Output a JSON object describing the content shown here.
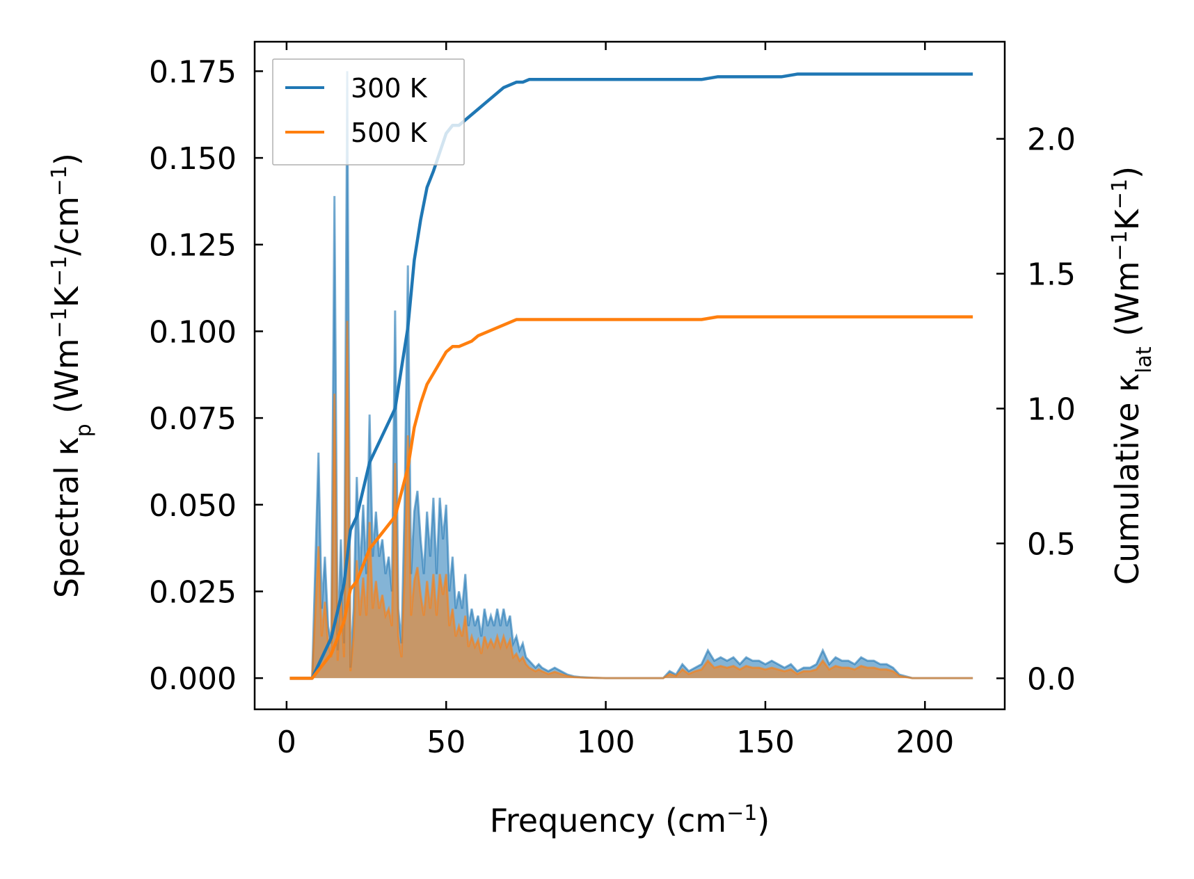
{
  "chart_data": {
    "type": "line",
    "title": "",
    "xlabel": {
      "text": "Frequency (cm",
      "sup": "−1",
      "tail": ")"
    },
    "ylabel_left": {
      "pre": "Spectral κ",
      "sub": "p",
      "mid": " (Wm",
      "sup1": "−1",
      "k": "K",
      "sup2": "−1",
      "per": "/cm",
      "sup3": "−1",
      "tail": ")"
    },
    "ylabel_right": {
      "pre": "Cumulative κ",
      "sub": "lat",
      "mid": " (Wm",
      "sup1": "−1",
      "k": "K",
      "sup2": "−1",
      "tail": ")"
    },
    "xlim": [
      -10,
      225
    ],
    "ylim_left": [
      -0.009,
      0.1835
    ],
    "ylim_right": [
      -0.115,
      2.36
    ],
    "xticks": [
      0,
      50,
      100,
      150,
      200
    ],
    "xtick_labels": [
      "0",
      "50",
      "100",
      "150",
      "200"
    ],
    "yticks_left": [
      0.0,
      0.025,
      0.05,
      0.075,
      0.1,
      0.125,
      0.15,
      0.175
    ],
    "ytick_labels_left": [
      "0.000",
      "0.025",
      "0.050",
      "0.075",
      "0.100",
      "0.125",
      "0.150",
      "0.175"
    ],
    "yticks_right": [
      0.0,
      0.5,
      1.0,
      1.5,
      2.0
    ],
    "ytick_labels_right": [
      "0.0",
      "0.5",
      "1.0",
      "1.5",
      "2.0"
    ],
    "legend": {
      "position": "upper-left",
      "entries": [
        "300 K",
        "500 K"
      ]
    },
    "colors": {
      "s300": "#1f77b4",
      "s500": "#ff7f0e",
      "fill300": "#1f77b4",
      "fill500": "#ff7f0e"
    },
    "spectral_300": {
      "x": [
        1,
        8,
        10,
        11,
        12,
        13,
        14,
        15,
        16,
        17,
        18,
        19,
        20,
        21,
        22,
        23,
        24,
        25,
        26,
        27,
        28,
        29,
        30,
        31,
        32,
        33,
        34,
        35,
        36,
        37,
        38,
        39,
        40,
        41,
        42,
        43,
        44,
        45,
        46,
        47,
        48,
        49,
        50,
        51,
        52,
        53,
        54,
        55,
        56,
        57,
        58,
        59,
        60,
        61,
        62,
        63,
        64,
        65,
        66,
        67,
        68,
        69,
        70,
        71,
        72,
        73,
        74,
        75,
        76,
        77,
        78,
        79,
        80,
        82,
        84,
        86,
        88,
        90,
        92,
        94,
        96,
        100,
        110,
        118,
        120,
        122,
        124,
        126,
        128,
        130,
        132,
        134,
        136,
        138,
        140,
        142,
        144,
        146,
        148,
        150,
        152,
        154,
        156,
        158,
        160,
        162,
        164,
        166,
        168,
        170,
        172,
        174,
        176,
        178,
        180,
        182,
        184,
        186,
        188,
        190,
        192,
        196,
        200,
        205,
        210,
        215
      ],
      "y": [
        0,
        0,
        0.065,
        0.02,
        0.035,
        0.015,
        0.01,
        0.139,
        0.008,
        0.04,
        0.01,
        0.175,
        0.003,
        0.02,
        0.058,
        0.03,
        0.05,
        0.03,
        0.076,
        0.035,
        0.048,
        0.035,
        0.04,
        0.03,
        0.035,
        0.025,
        0.106,
        0.02,
        0.01,
        0.05,
        0.119,
        0.03,
        0.048,
        0.054,
        0.04,
        0.03,
        0.048,
        0.035,
        0.052,
        0.03,
        0.052,
        0.04,
        0.05,
        0.025,
        0.035,
        0.02,
        0.025,
        0.02,
        0.03,
        0.015,
        0.02,
        0.015,
        0.018,
        0.012,
        0.02,
        0.015,
        0.018,
        0.015,
        0.02,
        0.015,
        0.02,
        0.015,
        0.018,
        0.01,
        0.012,
        0.008,
        0.01,
        0.006,
        0.005,
        0.004,
        0.003,
        0.004,
        0.003,
        0.002,
        0.003,
        0.002,
        0.001,
        0.0005,
        0.0003,
        0.0002,
        0.0001,
        0,
        0,
        0,
        0.002,
        0.001,
        0.004,
        0.002,
        0.003,
        0.004,
        0.008,
        0.005,
        0.006,
        0.005,
        0.006,
        0.004,
        0.006,
        0.005,
        0.005,
        0.004,
        0.005,
        0.004,
        0.003,
        0.004,
        0.002,
        0.003,
        0.003,
        0.004,
        0.008,
        0.004,
        0.006,
        0.005,
        0.005,
        0.004,
        0.006,
        0.005,
        0.005,
        0.004,
        0.004,
        0.003,
        0.001,
        0,
        0,
        0,
        0,
        0
      ]
    },
    "spectral_500": {
      "x": [
        1,
        8,
        10,
        11,
        12,
        13,
        14,
        15,
        16,
        17,
        18,
        19,
        20,
        21,
        22,
        23,
        24,
        25,
        26,
        27,
        28,
        29,
        30,
        31,
        32,
        33,
        34,
        35,
        36,
        37,
        38,
        39,
        40,
        41,
        42,
        43,
        44,
        45,
        46,
        47,
        48,
        49,
        50,
        51,
        52,
        53,
        54,
        55,
        56,
        57,
        58,
        59,
        60,
        61,
        62,
        63,
        64,
        65,
        66,
        67,
        68,
        69,
        70,
        71,
        72,
        73,
        74,
        75,
        76,
        77,
        78,
        79,
        80,
        82,
        84,
        86,
        88,
        90,
        92,
        94,
        96,
        100,
        110,
        118,
        120,
        122,
        124,
        126,
        128,
        130,
        132,
        134,
        136,
        138,
        140,
        142,
        144,
        146,
        148,
        150,
        152,
        154,
        156,
        158,
        160,
        162,
        164,
        166,
        168,
        170,
        172,
        174,
        176,
        178,
        180,
        182,
        184,
        186,
        188,
        190,
        192,
        196,
        200,
        205,
        210,
        215
      ],
      "y": [
        0,
        0,
        0.038,
        0.012,
        0.022,
        0.01,
        0.006,
        0.082,
        0.005,
        0.024,
        0.006,
        0.103,
        0.002,
        0.012,
        0.034,
        0.018,
        0.029,
        0.018,
        0.045,
        0.02,
        0.028,
        0.02,
        0.024,
        0.018,
        0.02,
        0.015,
        0.062,
        0.012,
        0.006,
        0.03,
        0.07,
        0.018,
        0.028,
        0.032,
        0.024,
        0.018,
        0.028,
        0.02,
        0.03,
        0.018,
        0.03,
        0.024,
        0.03,
        0.015,
        0.02,
        0.012,
        0.015,
        0.012,
        0.018,
        0.009,
        0.012,
        0.009,
        0.011,
        0.007,
        0.012,
        0.009,
        0.011,
        0.009,
        0.012,
        0.009,
        0.012,
        0.009,
        0.011,
        0.006,
        0.007,
        0.005,
        0.006,
        0.004,
        0.003,
        0.0025,
        0.002,
        0.0025,
        0.002,
        0.0012,
        0.0018,
        0.0012,
        0.0006,
        0.0003,
        0.0002,
        0.0001,
        0.0001,
        0,
        0,
        0,
        0.0012,
        0.0006,
        0.0025,
        0.0012,
        0.002,
        0.0025,
        0.005,
        0.003,
        0.0035,
        0.003,
        0.0035,
        0.0025,
        0.0035,
        0.003,
        0.003,
        0.0025,
        0.003,
        0.0025,
        0.002,
        0.0025,
        0.0012,
        0.002,
        0.002,
        0.0025,
        0.005,
        0.0025,
        0.0035,
        0.003,
        0.003,
        0.0025,
        0.0035,
        0.003,
        0.003,
        0.0025,
        0.0025,
        0.002,
        0.0006,
        0,
        0,
        0,
        0,
        0
      ]
    },
    "cumulative_300": {
      "x": [
        1,
        8,
        10,
        12,
        14,
        16,
        18,
        20,
        22,
        24,
        26,
        28,
        30,
        32,
        34,
        36,
        38,
        40,
        42,
        44,
        46,
        48,
        50,
        52,
        54,
        56,
        58,
        60,
        62,
        64,
        66,
        68,
        70,
        72,
        74,
        76,
        78,
        80,
        84,
        88,
        92,
        96,
        100,
        110,
        120,
        125,
        130,
        135,
        140,
        145,
        150,
        155,
        160,
        165,
        170,
        175,
        180,
        185,
        190,
        195,
        200,
        210,
        215
      ],
      "y": [
        0,
        0,
        0.05,
        0.1,
        0.15,
        0.25,
        0.35,
        0.55,
        0.6,
        0.7,
        0.8,
        0.85,
        0.9,
        0.95,
        1.0,
        1.15,
        1.3,
        1.55,
        1.7,
        1.82,
        1.88,
        1.95,
        2.02,
        2.05,
        2.05,
        2.07,
        2.09,
        2.11,
        2.13,
        2.15,
        2.17,
        2.19,
        2.2,
        2.21,
        2.21,
        2.22,
        2.22,
        2.22,
        2.22,
        2.22,
        2.22,
        2.22,
        2.22,
        2.22,
        2.22,
        2.22,
        2.22,
        2.23,
        2.23,
        2.23,
        2.23,
        2.23,
        2.24,
        2.24,
        2.24,
        2.24,
        2.24,
        2.24,
        2.24,
        2.24,
        2.24,
        2.24,
        2.24
      ]
    },
    "cumulative_500": {
      "x": [
        1,
        8,
        10,
        12,
        14,
        16,
        18,
        20,
        22,
        24,
        26,
        28,
        30,
        32,
        34,
        36,
        38,
        40,
        42,
        44,
        46,
        48,
        50,
        52,
        54,
        56,
        58,
        60,
        62,
        64,
        66,
        68,
        70,
        72,
        74,
        76,
        78,
        80,
        84,
        88,
        92,
        96,
        100,
        110,
        120,
        125,
        130,
        135,
        140,
        145,
        150,
        155,
        160,
        165,
        170,
        175,
        180,
        185,
        190,
        195,
        200,
        210,
        215
      ],
      "y": [
        0,
        0,
        0.03,
        0.06,
        0.09,
        0.15,
        0.21,
        0.33,
        0.36,
        0.42,
        0.48,
        0.51,
        0.54,
        0.57,
        0.6,
        0.69,
        0.78,
        0.93,
        1.02,
        1.09,
        1.13,
        1.17,
        1.21,
        1.23,
        1.23,
        1.24,
        1.25,
        1.27,
        1.28,
        1.29,
        1.3,
        1.31,
        1.32,
        1.33,
        1.33,
        1.33,
        1.33,
        1.33,
        1.33,
        1.33,
        1.33,
        1.33,
        1.33,
        1.33,
        1.33,
        1.33,
        1.33,
        1.34,
        1.34,
        1.34,
        1.34,
        1.34,
        1.34,
        1.34,
        1.34,
        1.34,
        1.34,
        1.34,
        1.34,
        1.34,
        1.34,
        1.34,
        1.34
      ]
    }
  }
}
